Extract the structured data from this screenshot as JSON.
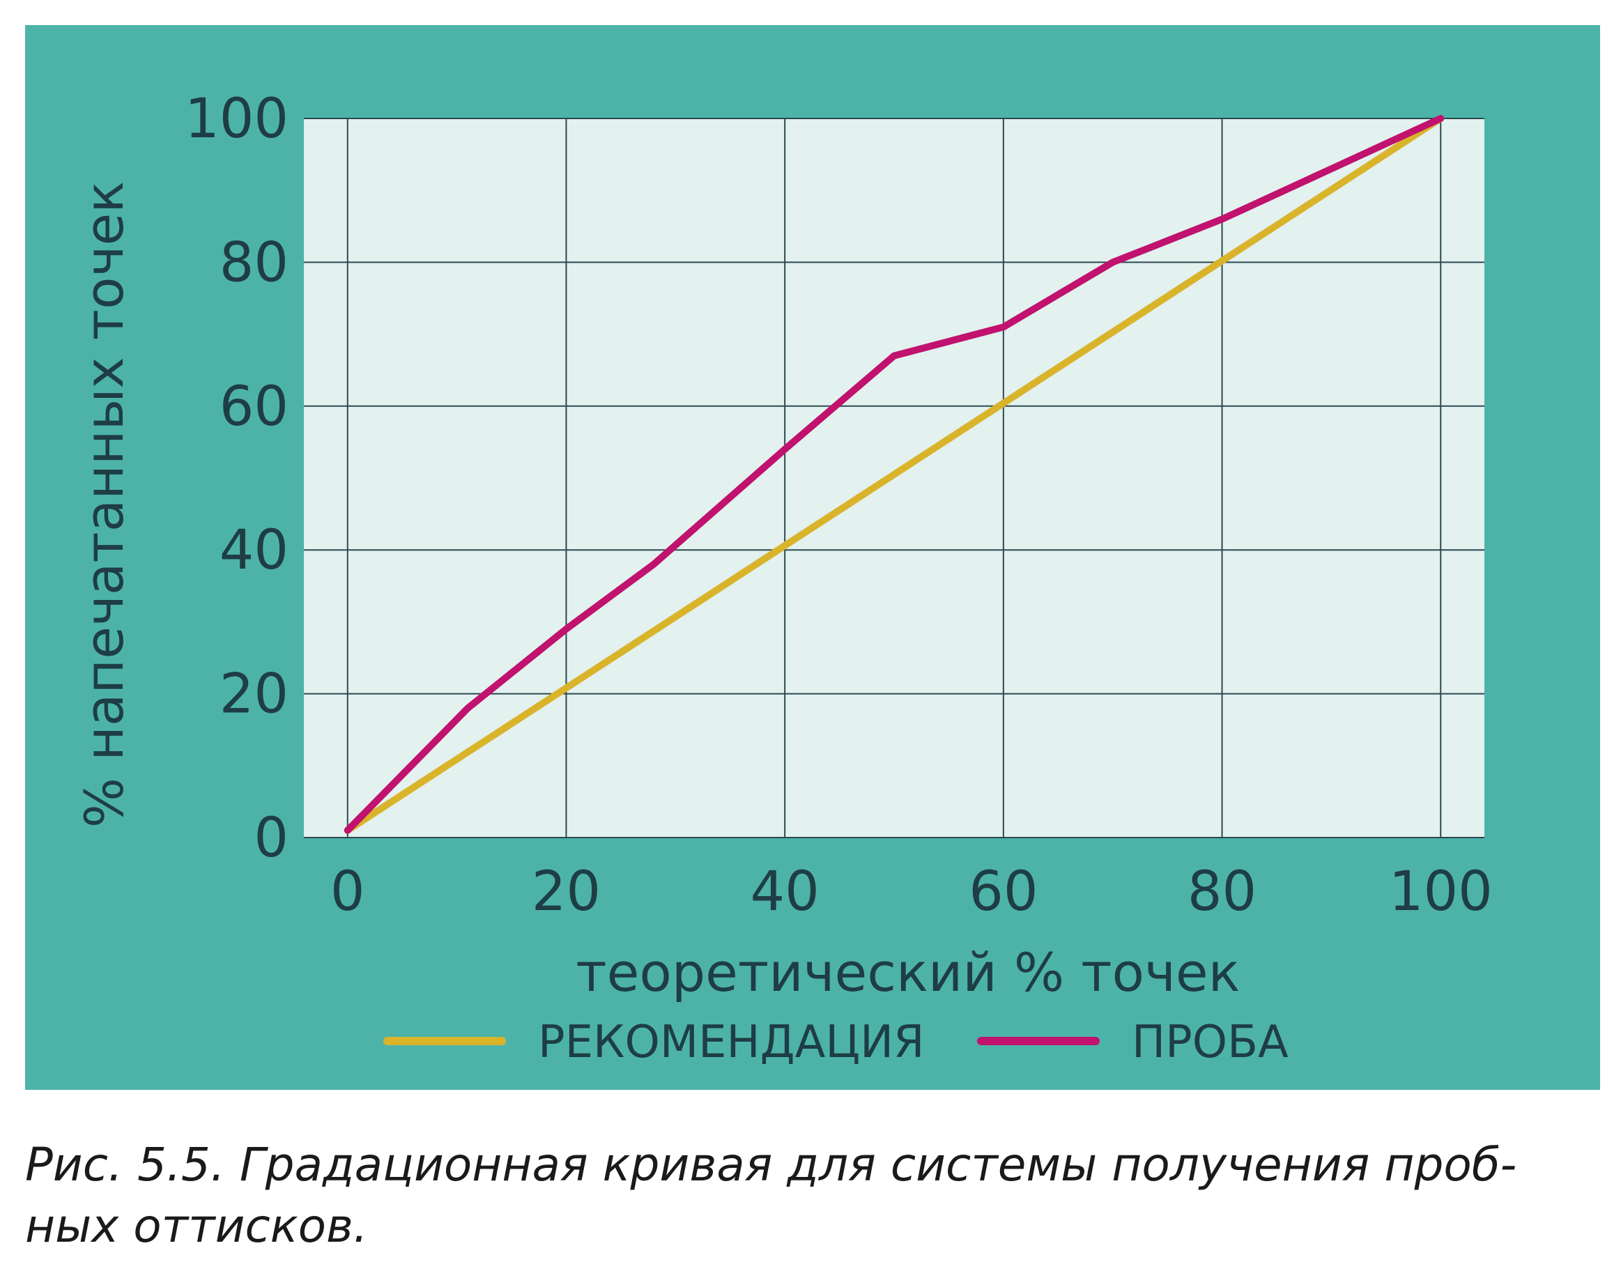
{
  "caption": "Рис. 5.5. Градационная кривая для системы получения проб-ных оттисков.",
  "caption_lines": [
    "Рис. 5.5. Градационная кривая для системы получения проб-",
    "ных оттисков."
  ],
  "colors": {
    "panel": "#4db3a9",
    "plot_bg": "#e3f1ef",
    "grid": "#2b4a50",
    "text": "#1e3d45",
    "recommendation": "#d9b42b",
    "proof": "#c0126e"
  },
  "chart_data": {
    "type": "line",
    "title": "",
    "xlabel": "теоретический % точек",
    "ylabel": "% напечатанных точек",
    "xlim": [
      -4,
      104
    ],
    "ylim": [
      0,
      100
    ],
    "xticks": [
      "0",
      "20",
      "40",
      "60",
      "80",
      "100"
    ],
    "yticks": [
      "0",
      "20",
      "40",
      "60",
      "80",
      "100"
    ],
    "grid": true,
    "legend_position": "bottom",
    "series": [
      {
        "name": "РЕКОМЕНДАЦИЯ",
        "color": "#d9b42b",
        "x": [
          0,
          100
        ],
        "y": [
          1,
          100
        ]
      },
      {
        "name": "ПРОБА",
        "color": "#c0126e",
        "x": [
          0,
          11,
          20,
          28,
          40,
          50,
          60,
          70,
          80,
          90,
          100
        ],
        "y": [
          1,
          18,
          29,
          38,
          54,
          67,
          71,
          80,
          86,
          93,
          100
        ]
      }
    ]
  }
}
